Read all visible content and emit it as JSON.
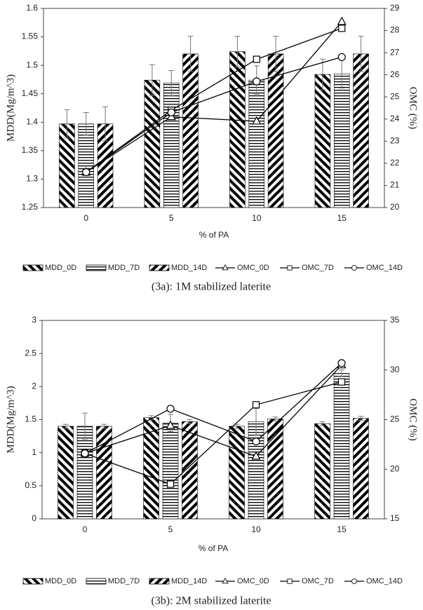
{
  "chart_data": [
    {
      "type": "bar",
      "caption": "(3a): 1M stabilized laterite",
      "x_label": "% of PA",
      "y_label": "MDD(Mg/m^3)",
      "y2_label": "OMC (%)",
      "categories": [
        "0",
        "5",
        "10",
        "15"
      ],
      "ylim": [
        1.25,
        1.6
      ],
      "yticks": [
        1.25,
        1.3,
        1.35,
        1.4,
        1.45,
        1.5,
        1.55,
        1.6
      ],
      "y2lim": [
        20,
        29
      ],
      "y2ticks": [
        20,
        21,
        22,
        23,
        24,
        25,
        26,
        27,
        28,
        29
      ],
      "grid": false,
      "series": [
        {
          "name": "MDD_0D",
          "kind": "bar",
          "hatch": "backslash",
          "color": "#000000",
          "values": [
            1.397,
            1.474,
            1.524,
            1.484
          ],
          "errors": [
            0.025,
            0.027,
            0.027,
            0.027
          ]
        },
        {
          "name": "MDD_7D",
          "kind": "bar",
          "hatch": "horizontal",
          "color": "#000000",
          "values": [
            1.397,
            1.469,
            1.474,
            1.485
          ],
          "errors": [
            0.02,
            0.022,
            0.025,
            0.025
          ]
        },
        {
          "name": "MDD_14D",
          "kind": "bar",
          "hatch": "slash",
          "color": "#000000",
          "values": [
            1.397,
            1.52,
            1.52,
            1.52
          ],
          "errors": [
            0.03,
            0.031,
            0.031,
            0.031
          ]
        },
        {
          "name": "OMC_0D",
          "kind": "line",
          "marker": "triangle",
          "axis": "y2",
          "color": "#000000",
          "values": [
            21.6,
            24.1,
            23.9,
            28.4
          ]
        },
        {
          "name": "OMC_7D",
          "kind": "line",
          "marker": "square",
          "axis": "y2",
          "color": "#000000",
          "values": [
            21.6,
            24.4,
            26.7,
            28.1
          ]
        },
        {
          "name": "OMC_14D",
          "kind": "line",
          "marker": "circle",
          "axis": "y2",
          "color": "#000000",
          "values": [
            21.6,
            24.3,
            25.7,
            26.8
          ]
        }
      ]
    },
    {
      "type": "bar",
      "caption": "(3b): 2M stabilized laterite",
      "x_label": "% of PA",
      "y_label": "MDD(Mg/m^3)",
      "y2_label": "OMC (%)",
      "categories": [
        "0",
        "5",
        "10",
        "15"
      ],
      "ylim": [
        0,
        3
      ],
      "yticks": [
        0,
        0.5,
        1,
        1.5,
        2,
        2.5,
        3
      ],
      "y2lim": [
        15,
        35
      ],
      "y2ticks": [
        15,
        20,
        25,
        30,
        35
      ],
      "grid": false,
      "series": [
        {
          "name": "MDD_0D",
          "kind": "bar",
          "hatch": "backslash",
          "color": "#000000",
          "values": [
            1.4,
            1.53,
            1.4,
            1.44
          ],
          "errors": [
            0.03,
            0.03,
            0.03,
            0.03
          ]
        },
        {
          "name": "MDD_7D",
          "kind": "bar",
          "hatch": "horizontal",
          "color": "#000000",
          "values": [
            1.4,
            1.45,
            1.47,
            2.2
          ],
          "errors": [
            0.2,
            0.13,
            0.2,
            0.05
          ]
        },
        {
          "name": "MDD_14D",
          "kind": "bar",
          "hatch": "slash",
          "color": "#000000",
          "values": [
            1.4,
            1.47,
            1.51,
            1.52
          ],
          "errors": [
            0.03,
            0.03,
            0.03,
            0.03
          ]
        },
        {
          "name": "OMC_0D",
          "kind": "line",
          "marker": "triangle",
          "axis": "y2",
          "color": "#000000",
          "values": [
            21.6,
            24.4,
            21.3,
            30.5
          ]
        },
        {
          "name": "OMC_7D",
          "kind": "line",
          "marker": "square",
          "axis": "y2",
          "color": "#000000",
          "values": [
            21.6,
            18.5,
            26.5,
            28.8
          ]
        },
        {
          "name": "OMC_14D",
          "kind": "line",
          "marker": "circle",
          "axis": "y2",
          "color": "#000000",
          "values": [
            21.6,
            26.1,
            22.8,
            30.7
          ]
        }
      ]
    }
  ]
}
